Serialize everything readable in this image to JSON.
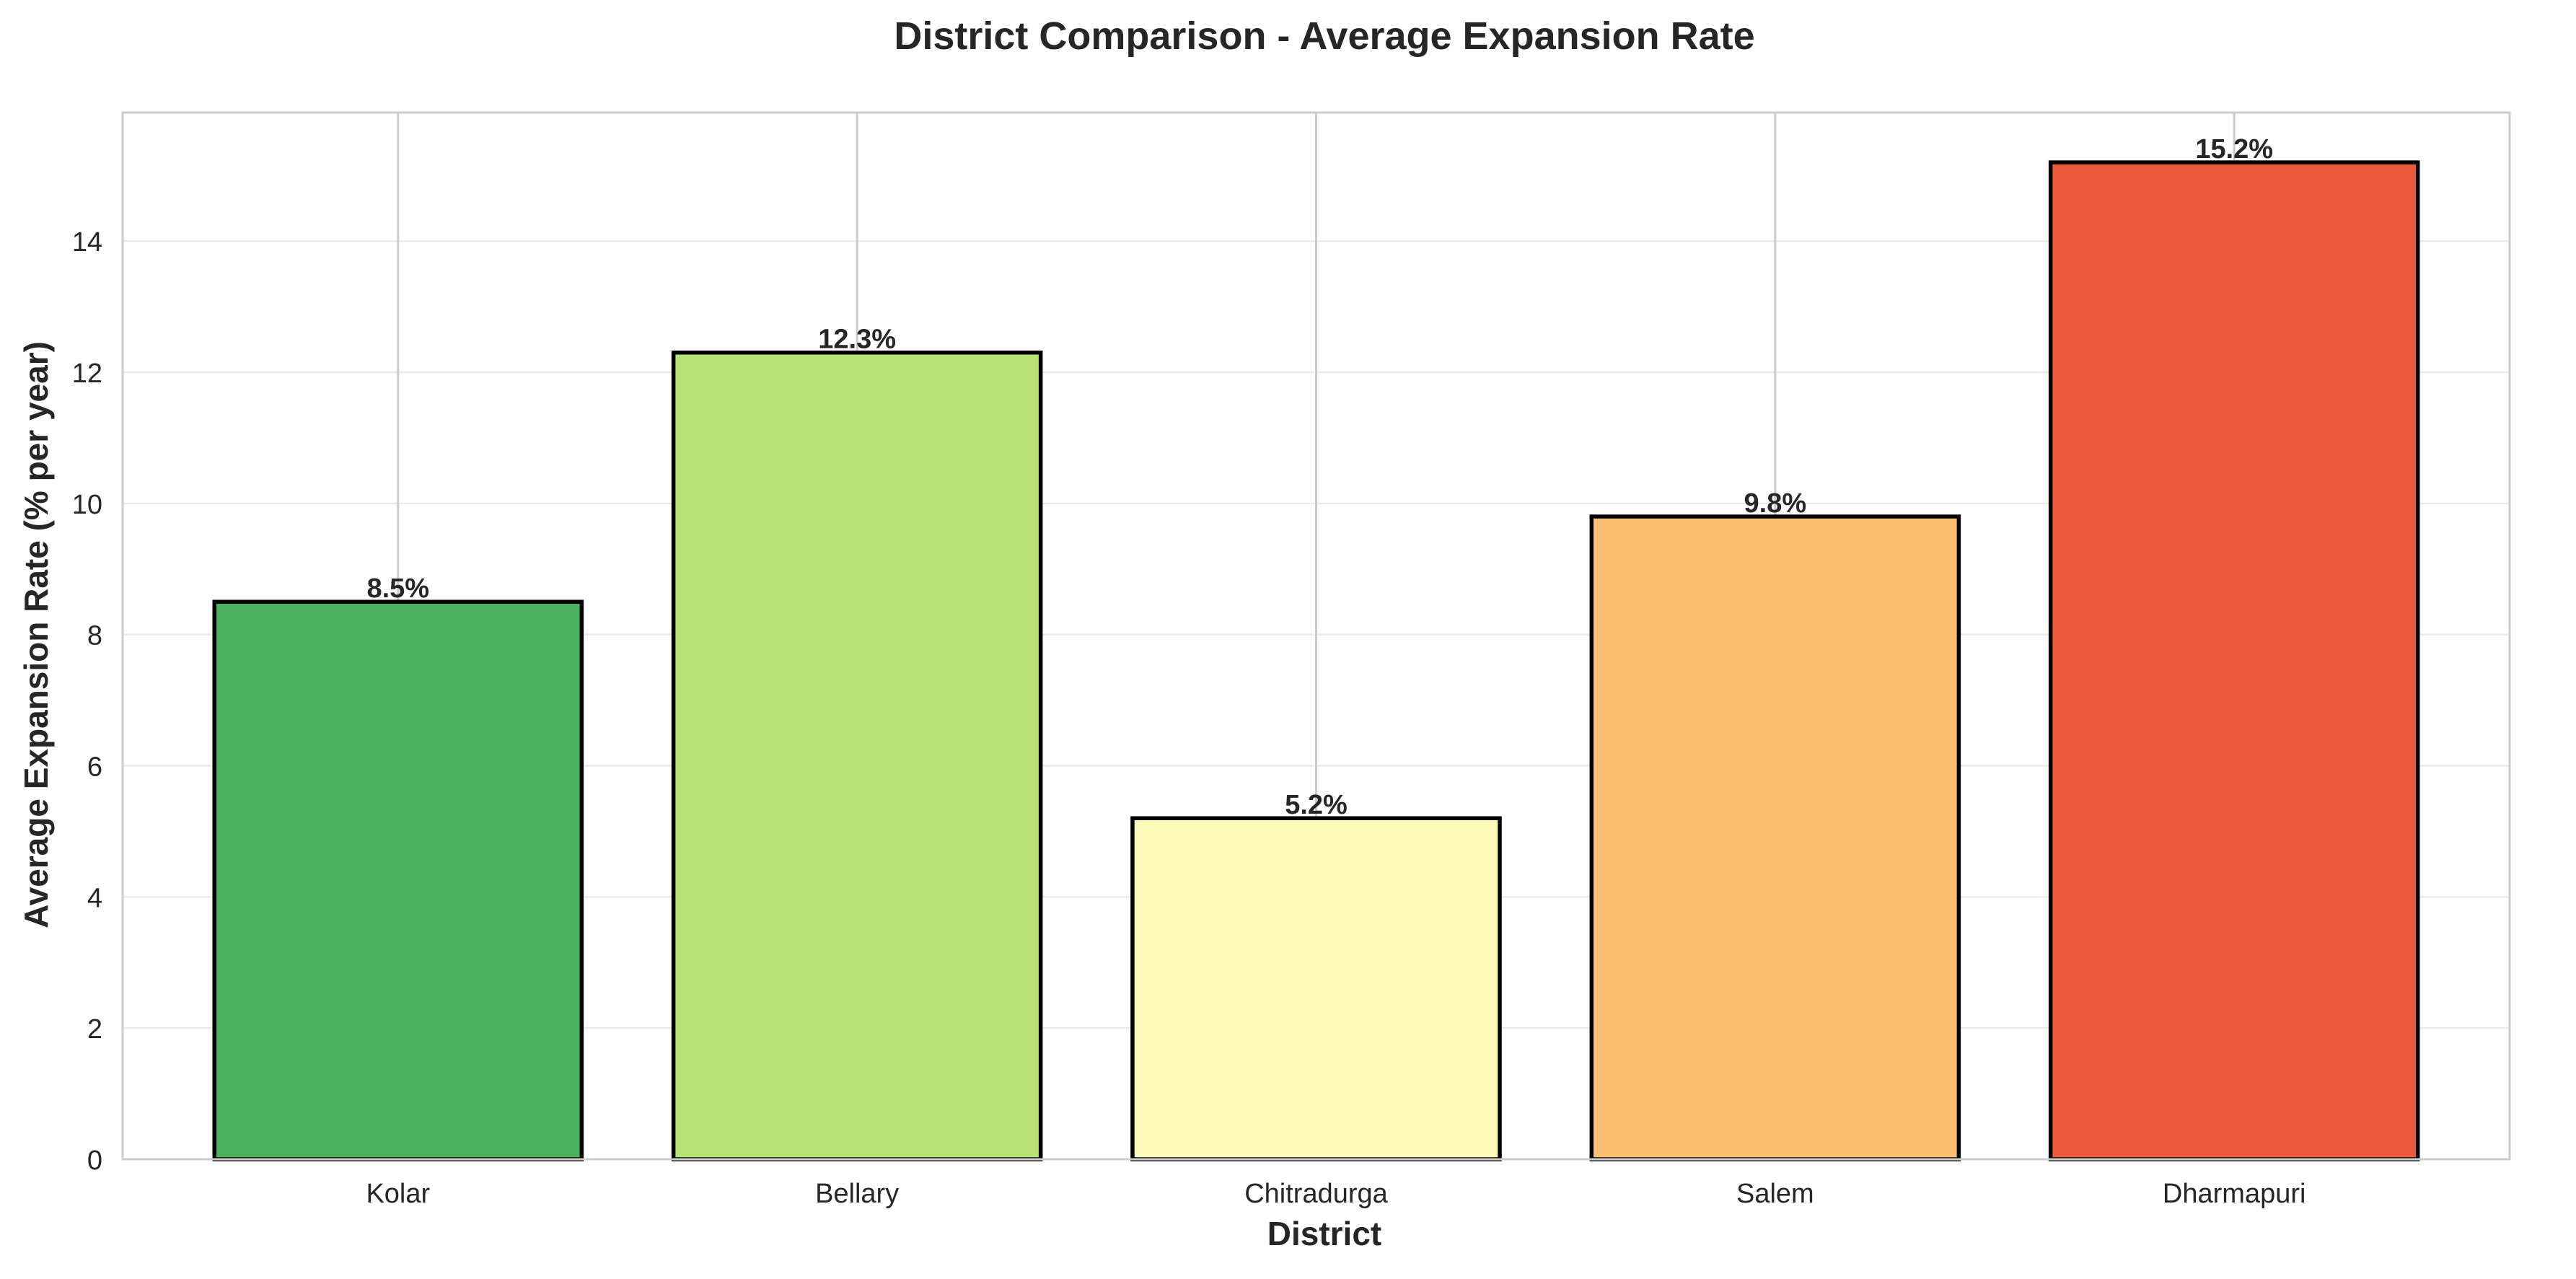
{
  "chart_data": {
    "type": "bar",
    "title": "District Comparison - Average Expansion Rate",
    "xlabel": "District",
    "ylabel": "Average Expansion Rate (% per year)",
    "categories": [
      "Kolar",
      "Bellary",
      "Chitradurga",
      "Salem",
      "Dharmapuri"
    ],
    "values": [
      8.5,
      12.3,
      5.2,
      9.8,
      15.2
    ],
    "data_labels": [
      "8.5%",
      "12.3%",
      "5.2%",
      "9.8%",
      "15.2%"
    ],
    "colors": [
      "#4cb05c",
      "#b9e276",
      "#fffcbb",
      "#fcbf71",
      "#eb5a3a"
    ],
    "bar_edge_color": "#000000",
    "yticks": [
      0,
      2,
      4,
      6,
      8,
      10,
      12,
      14
    ],
    "ylim": [
      0,
      15.96
    ],
    "grid": true,
    "legend": "none"
  }
}
